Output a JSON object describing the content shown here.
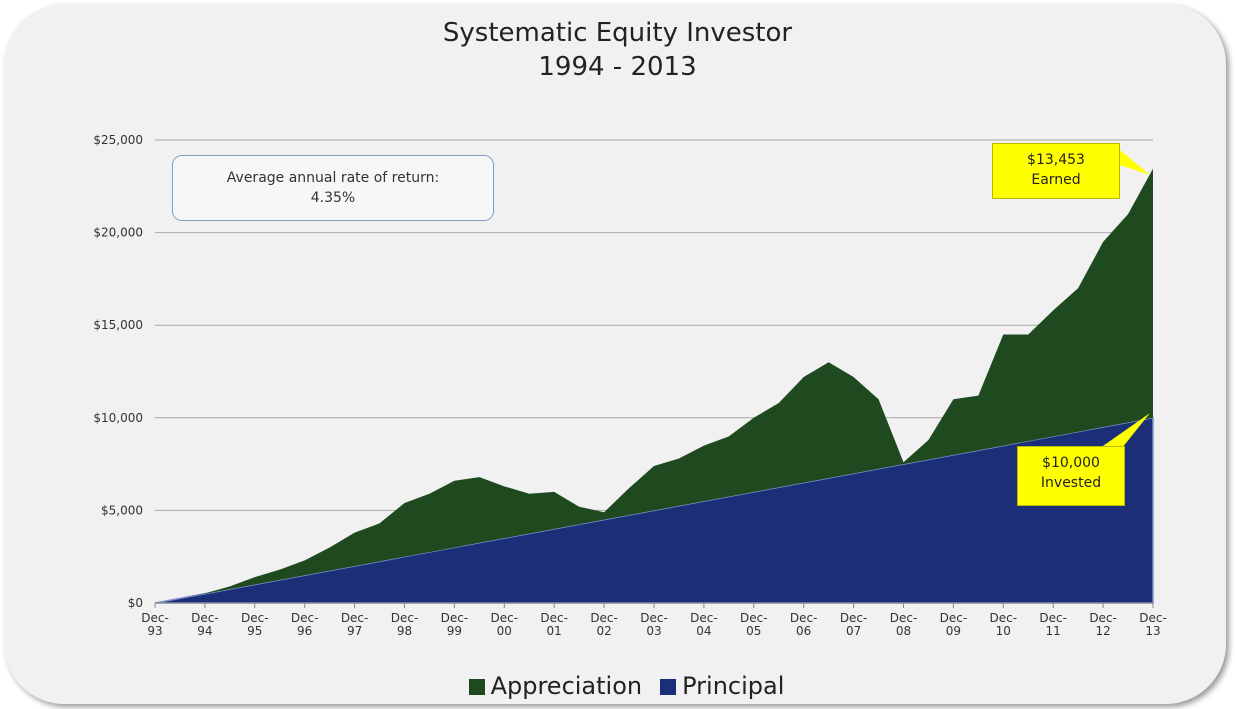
{
  "chart_data": {
    "type": "stacked-area",
    "title": "Systematic Equity Investor",
    "subtitle": "1994 - 2013",
    "annotation": "Average annual rate of return:",
    "annotation_value": "4.35%",
    "callouts": [
      {
        "value": "$13,453",
        "label": "Earned"
      },
      {
        "value": "$10,000",
        "label": "Invested"
      }
    ],
    "categories": [
      "Dec-93",
      null,
      "Dec-94",
      null,
      "Dec-95",
      null,
      "Dec-96",
      null,
      "Dec-97",
      null,
      "Dec-98",
      null,
      "Dec-99",
      null,
      "Dec-00",
      null,
      "Dec-01",
      null,
      "Dec-02",
      null,
      "Dec-03",
      null,
      "Dec-04",
      null,
      "Dec-05",
      null,
      "Dec-06",
      null,
      "Dec-07",
      null,
      "Dec-08",
      null,
      "Dec-09",
      null,
      "Dec-10",
      null,
      "Dec-11",
      null,
      "Dec-12",
      null,
      "Dec-13"
    ],
    "series": [
      {
        "name": "Appreciation",
        "color": "#1f4a1f",
        "values": [
          0,
          0,
          20,
          150,
          400,
          550,
          800,
          1250,
          1800,
          2050,
          2900,
          3150,
          3600,
          3550,
          2800,
          2150,
          2000,
          950,
          400,
          1450,
          2400,
          2550,
          3000,
          3250,
          4000,
          4550,
          5700,
          6250,
          5200,
          3750,
          100,
          1050,
          3000,
          2950,
          6000,
          5750,
          6800,
          7750,
          10000,
          11250,
          13453
        ]
      },
      {
        "name": "Principal",
        "color": "#1b2f78",
        "values": [
          0,
          250,
          500,
          750,
          1000,
          1250,
          1500,
          1750,
          2000,
          2250,
          2500,
          2750,
          3000,
          3250,
          3500,
          3750,
          4000,
          4250,
          4500,
          4750,
          5000,
          5250,
          5500,
          5750,
          6000,
          6250,
          6500,
          6750,
          7000,
          7250,
          7500,
          7750,
          8000,
          8250,
          8500,
          8750,
          9000,
          9250,
          9500,
          9750,
          10000
        ]
      }
    ],
    "ylim": [
      0,
      25000
    ],
    "yticks": [
      {
        "value": 0,
        "label": "$0"
      },
      {
        "value": 5000,
        "label": "$5,000"
      },
      {
        "value": 10000,
        "label": "$10,000"
      },
      {
        "value": 15000,
        "label": "$15,000"
      },
      {
        "value": 20000,
        "label": "$20,000"
      },
      {
        "value": 25000,
        "label": "$25,000"
      }
    ],
    "grid": true,
    "legend": "bottom"
  }
}
